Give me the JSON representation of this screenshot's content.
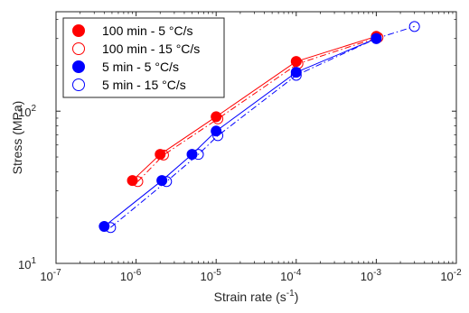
{
  "chart_data": {
    "type": "scatter",
    "xlabel": {
      "base": "Strain rate (s",
      "sup": "-1",
      "tail": ")"
    },
    "ylabel": "Stress (MPa)",
    "xscale": "log",
    "yscale": "log",
    "xlim": [
      1e-07,
      0.01
    ],
    "ylim": [
      10,
      450
    ],
    "x_ticks": [
      {
        "value": 1e-07,
        "base": "10",
        "exp": "-7"
      },
      {
        "value": 1e-06,
        "base": "10",
        "exp": "-6"
      },
      {
        "value": 1e-05,
        "base": "10",
        "exp": "-5"
      },
      {
        "value": 0.0001,
        "base": "10",
        "exp": "-4"
      },
      {
        "value": 0.001,
        "base": "10",
        "exp": "-3"
      },
      {
        "value": 0.01,
        "base": "10",
        "exp": "-2"
      }
    ],
    "y_ticks": [
      {
        "value": 10,
        "base": "10",
        "exp": "1"
      },
      {
        "value": 100,
        "base": "10",
        "exp": "2"
      }
    ],
    "grid": false,
    "legend_position": "top-left",
    "series": [
      {
        "name": "100 min - 5 °C/s",
        "color": "#ff0000",
        "marker": "filled-circle",
        "line": "solid",
        "x": [
          9e-07,
          2e-06,
          1e-05,
          0.0001,
          0.001
        ],
        "y": [
          35,
          52,
          92,
          212,
          310
        ]
      },
      {
        "name": "100 min - 15 °C/s",
        "color": "#ff0000",
        "marker": "open-circle",
        "line": "dashdot",
        "x": [
          1.05e-06,
          2.2e-06,
          1.05e-05,
          0.000105,
          0.00105
        ],
        "y": [
          34.5,
          51.5,
          89,
          205,
          305
        ]
      },
      {
        "name": "5 min - 5 °C/s",
        "color": "#0000ff",
        "marker": "filled-circle",
        "line": "solid",
        "x": [
          4e-07,
          2.1e-06,
          5e-06,
          1e-05,
          0.0001,
          0.001
        ],
        "y": [
          17.5,
          35,
          52,
          74,
          180,
          300
        ]
      },
      {
        "name": "5 min - 15 °C/s",
        "color": "#0000ff",
        "marker": "open-circle",
        "line": "dashdot",
        "x": [
          4.8e-07,
          2.4e-06,
          6e-06,
          1.05e-05,
          0.0001,
          0.001,
          0.003
        ],
        "y": [
          17.2,
          34.5,
          52,
          69,
          172,
          300,
          360
        ]
      }
    ]
  }
}
